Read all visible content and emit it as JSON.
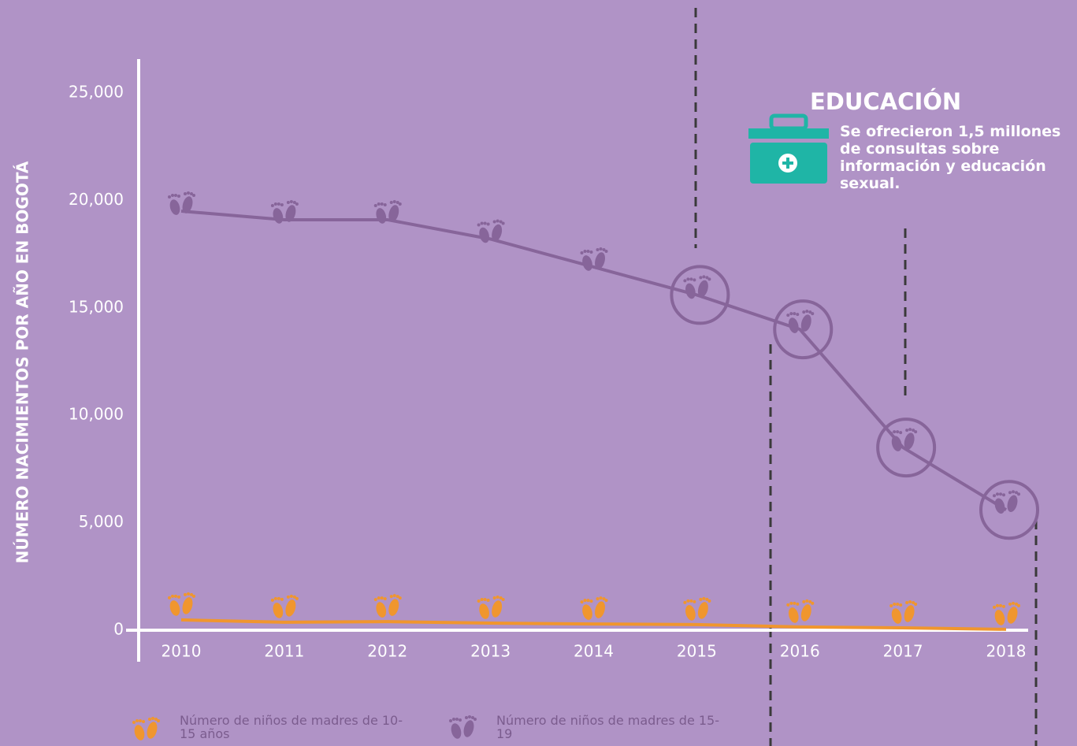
{
  "chart_data": {
    "type": "line",
    "categories": [
      "2010",
      "2011",
      "2012",
      "2013",
      "2014",
      "2015",
      "2016",
      "2017",
      "2018"
    ],
    "series": [
      {
        "name": "Número de niños de madres de 10-15 años",
        "color": "#f0962e",
        "values": [
          480,
          370,
          400,
          330,
          290,
          260,
          150,
          110,
          40
        ]
      },
      {
        "name": "Número de niños de madres de 15-19",
        "color": "#87659a",
        "values": [
          19500,
          19100,
          19100,
          18200,
          16900,
          15600,
          14000,
          8500,
          5600
        ]
      }
    ],
    "ylabel": "NÚMERO NACIMIENTOS POR AÑO EN BOGOTÁ",
    "ylim": [
      0,
      25000
    ],
    "yticks": [
      0,
      {
        "value": 5000,
        "label": "5,000"
      },
      {
        "value": 10000,
        "label": "10,000"
      },
      {
        "value": 15000,
        "label": "15,000"
      },
      {
        "value": 20000,
        "label": "20,000"
      },
      {
        "value": 25000,
        "label": "25,000"
      }
    ],
    "highlight": [
      5,
      6,
      7,
      8
    ],
    "annotation": {
      "title": "EDUCACIÓN",
      "text": "Se ofrecieron 1,5 millones de consultas sobre información y educación sexual."
    }
  }
}
